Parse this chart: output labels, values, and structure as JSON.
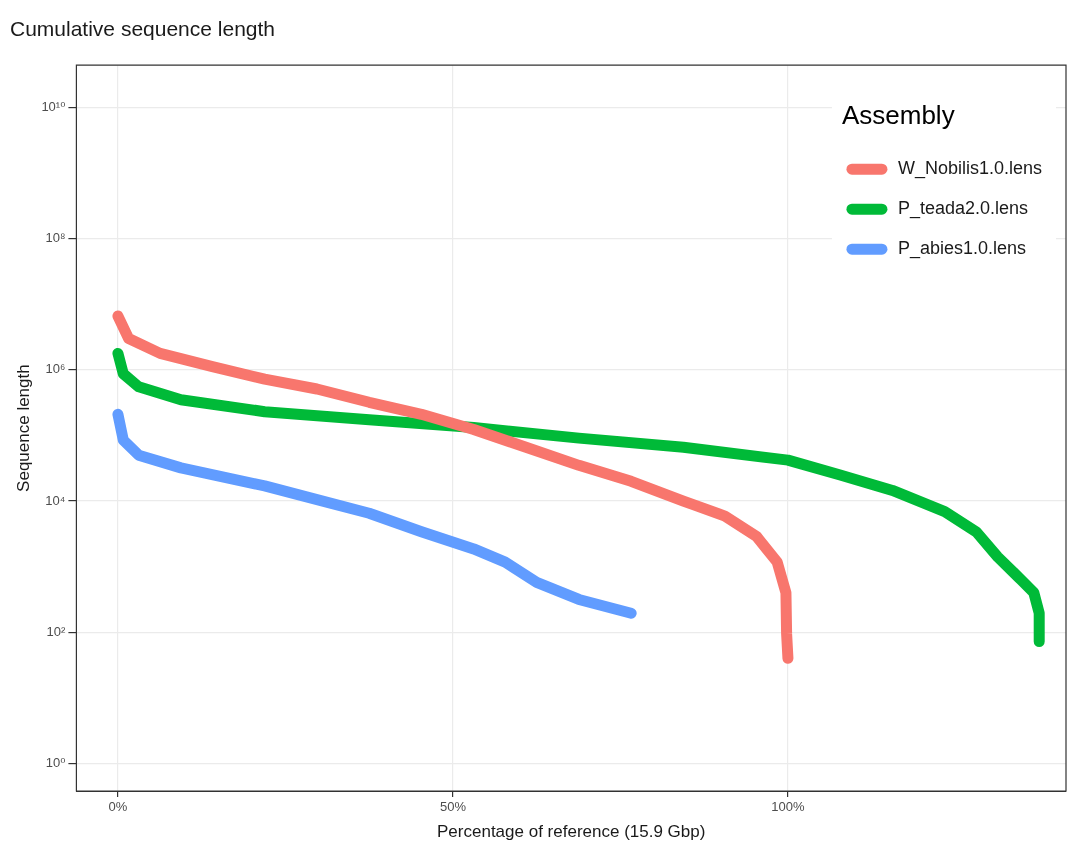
{
  "chart_data": {
    "type": "line",
    "title": "Cumulative sequence length",
    "xlabel": "Percentage of reference (15.9 Gbp)",
    "ylabel": "Sequence length",
    "legend_title": "Assembly",
    "log": "y",
    "grid": true,
    "legend": "top right",
    "marker": "none",
    "line_style": "solid",
    "xlim": [
      -6.2,
      141.5
    ],
    "xticks": [
      {
        "value": 0,
        "label": "0%"
      },
      {
        "value": 50,
        "label": "50%"
      },
      {
        "value": 100,
        "label": "100%"
      }
    ],
    "ylim": [
      0.38,
      44000000000
    ],
    "yticks": [
      {
        "value": 1,
        "label": "10⁰"
      },
      {
        "value": 100,
        "label": "10²"
      },
      {
        "value": 10000,
        "label": "10⁴"
      },
      {
        "value": 1000000,
        "label": "10⁶"
      },
      {
        "value": 100000000,
        "label": "10⁸"
      },
      {
        "value": 10000000000,
        "label": "10¹⁰"
      }
    ],
    "series": [
      {
        "name": "W_Nobilis1.0.lens",
        "color": "#f8766d",
        "x": [
          0,
          1.6,
          6.3,
          14.1,
          21.9,
          29.7,
          37.5,
          45.3,
          53.1,
          60.9,
          68.8,
          76.6,
          84.4,
          90.6,
          95.3,
          98.4,
          99.7,
          99.8,
          100
        ],
        "values": [
          6600000,
          3000000,
          1780000,
          1120000,
          720000,
          510000,
          320000,
          210000,
          123000,
          66000,
          35000,
          20000,
          10000,
          5900,
          2900,
          1170,
          400,
          95,
          40
        ]
      },
      {
        "name": "P_teada2.0.lens",
        "color": "#00ba38",
        "x": [
          0,
          0.8,
          3.1,
          9.4,
          21.9,
          37.5,
          53.1,
          68.8,
          84.4,
          100,
          107.8,
          115.6,
          123.4,
          128.1,
          131.3,
          134.4,
          136.7,
          137.5,
          137.5
        ],
        "values": [
          1780000,
          870000,
          550000,
          350000,
          230000,
          174000,
          132000,
          91000,
          66000,
          42000,
          25000,
          14500,
          6900,
          3400,
          1410,
          690,
          400,
          195,
          72
        ]
      },
      {
        "name": "P_abies1.0.lens",
        "color": "#619cff",
        "x": [
          0,
          0.8,
          3.1,
          9.4,
          21.9,
          37.5,
          45.3,
          53.1,
          57.8,
          62.5,
          68.8,
          76.6
        ],
        "values": [
          210000,
          85000,
          50000,
          32000,
          17000,
          6500,
          3400,
          1860,
          1170,
          575,
          316,
          195
        ]
      }
    ]
  }
}
